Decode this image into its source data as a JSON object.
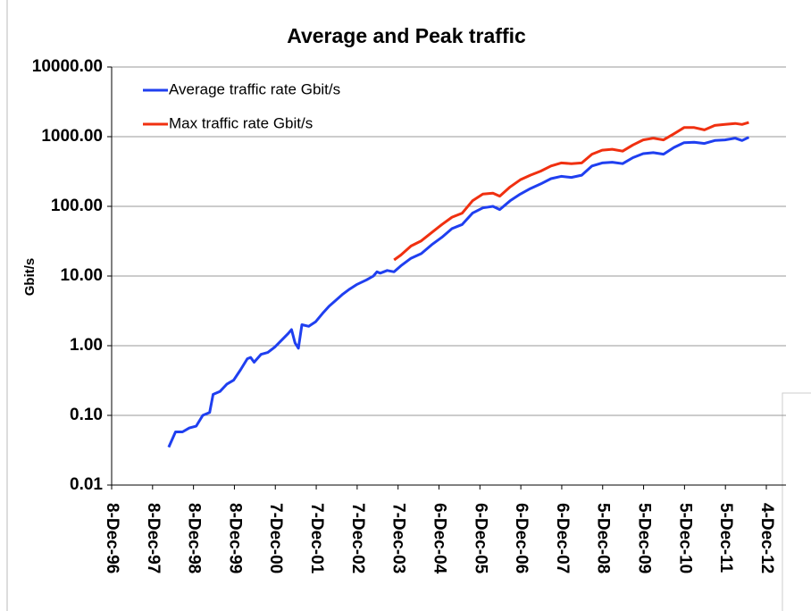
{
  "chart_data": {
    "type": "line",
    "title": "Average and Peak traffic",
    "ylabel": "Gbit/s",
    "x": [
      "1998-05-01",
      "1998-07-01",
      "1998-09-01",
      "1998-11-01",
      "1999-01-01",
      "1999-03-01",
      "1999-05-01",
      "1999-06-01",
      "1999-08-01",
      "1999-10-01",
      "1999-12-01",
      "2000-02-01",
      "2000-04-01",
      "2000-05-01",
      "2000-06-01",
      "2000-08-01",
      "2000-10-01",
      "2000-12-01",
      "2001-02-01",
      "2001-04-01",
      "2001-05-01",
      "2001-06-01",
      "2001-07-01",
      "2001-08-01",
      "2001-10-01",
      "2001-12-01",
      "2002-02-01",
      "2002-04-01",
      "2002-06-01",
      "2002-08-01",
      "2002-10-01",
      "2002-12-01",
      "2003-03-01",
      "2003-05-01",
      "2003-06-01",
      "2003-07-01",
      "2003-09-01",
      "2003-11-01",
      "2004-01-01",
      "2004-04-01",
      "2004-07-01",
      "2004-10-01",
      "2005-01-01",
      "2005-04-01",
      "2005-07-01",
      "2005-10-01",
      "2006-01-01",
      "2006-04-01",
      "2006-06-01",
      "2006-09-01",
      "2006-12-01",
      "2007-03-01",
      "2007-06-01",
      "2007-09-01",
      "2007-12-01",
      "2008-03-01",
      "2008-06-01",
      "2008-09-01",
      "2008-12-01",
      "2009-03-01",
      "2009-06-01",
      "2009-09-01",
      "2009-12-01",
      "2010-03-01",
      "2010-06-01",
      "2010-09-01",
      "2010-12-01",
      "2011-03-01",
      "2011-06-01",
      "2011-09-01",
      "2011-12-01",
      "2012-03-01",
      "2012-05-01",
      "2012-07-01"
    ],
    "series": [
      {
        "name": "Average traffic rate Gbit/s",
        "color": "#1f3ff0",
        "values": [
          0.035,
          0.058,
          0.058,
          0.066,
          0.07,
          0.1,
          0.11,
          0.2,
          0.22,
          0.28,
          0.32,
          0.45,
          0.65,
          0.68,
          0.58,
          0.75,
          0.8,
          0.95,
          1.2,
          1.5,
          1.7,
          1.1,
          0.92,
          2.0,
          1.9,
          2.2,
          2.9,
          3.7,
          4.5,
          5.5,
          6.5,
          7.5,
          8.8,
          10,
          11.5,
          11,
          12,
          11.5,
          14,
          18,
          21,
          28,
          36,
          48,
          55,
          80,
          95,
          100,
          90,
          120,
          150,
          180,
          210,
          250,
          270,
          260,
          280,
          380,
          420,
          430,
          410,
          500,
          570,
          590,
          560,
          700,
          820,
          830,
          800,
          880,
          900,
          950,
          880,
          980
        ]
      },
      {
        "name": "Max traffic rate Gbit/s",
        "color": "#f03010",
        "values": [
          null,
          null,
          null,
          null,
          null,
          null,
          null,
          null,
          null,
          null,
          null,
          null,
          null,
          null,
          null,
          null,
          null,
          null,
          null,
          null,
          null,
          null,
          null,
          null,
          null,
          null,
          null,
          null,
          null,
          null,
          null,
          null,
          null,
          null,
          null,
          null,
          null,
          17,
          20,
          27,
          32,
          42,
          55,
          70,
          80,
          120,
          150,
          155,
          140,
          190,
          240,
          280,
          320,
          380,
          420,
          410,
          420,
          560,
          640,
          660,
          620,
          760,
          900,
          950,
          900,
          1100,
          1350,
          1350,
          1250,
          1450,
          1500,
          1550,
          1500,
          1600
        ]
      }
    ],
    "xlim": [
      "1996-12-08",
      "2012-12-04"
    ],
    "xticks": [
      {
        "value": "1996-12-08",
        "label": "8-Dec-96"
      },
      {
        "value": "1997-12-08",
        "label": "8-Dec-97"
      },
      {
        "value": "1998-12-08",
        "label": "8-Dec-98"
      },
      {
        "value": "1999-12-08",
        "label": "8-Dec-99"
      },
      {
        "value": "2000-12-07",
        "label": "7-Dec-00"
      },
      {
        "value": "2001-12-07",
        "label": "7-Dec-01"
      },
      {
        "value": "2002-12-07",
        "label": "7-Dec-02"
      },
      {
        "value": "2003-12-07",
        "label": "7-Dec-03"
      },
      {
        "value": "2004-12-06",
        "label": "6-Dec-04"
      },
      {
        "value": "2005-12-06",
        "label": "6-Dec-05"
      },
      {
        "value": "2006-12-06",
        "label": "6-Dec-06"
      },
      {
        "value": "2007-12-06",
        "label": "6-Dec-07"
      },
      {
        "value": "2008-12-05",
        "label": "5-Dec-08"
      },
      {
        "value": "2009-12-05",
        "label": "5-Dec-09"
      },
      {
        "value": "2010-12-05",
        "label": "5-Dec-10"
      },
      {
        "value": "2011-12-05",
        "label": "5-Dec-11"
      },
      {
        "value": "2012-12-04",
        "label": "4-Dec-12"
      }
    ],
    "ylim": [
      0.01,
      10000
    ],
    "ylog": true,
    "yticks": [
      {
        "value": 0.01,
        "label": "0.01"
      },
      {
        "value": 0.1,
        "label": "0.10"
      },
      {
        "value": 1,
        "label": "1.00"
      },
      {
        "value": 10,
        "label": "10.00"
      },
      {
        "value": 100,
        "label": "100.00"
      },
      {
        "value": 1000,
        "label": "1000.00"
      },
      {
        "value": 10000,
        "label": "10000.00"
      }
    ],
    "grid": true,
    "legend": "upper left"
  }
}
